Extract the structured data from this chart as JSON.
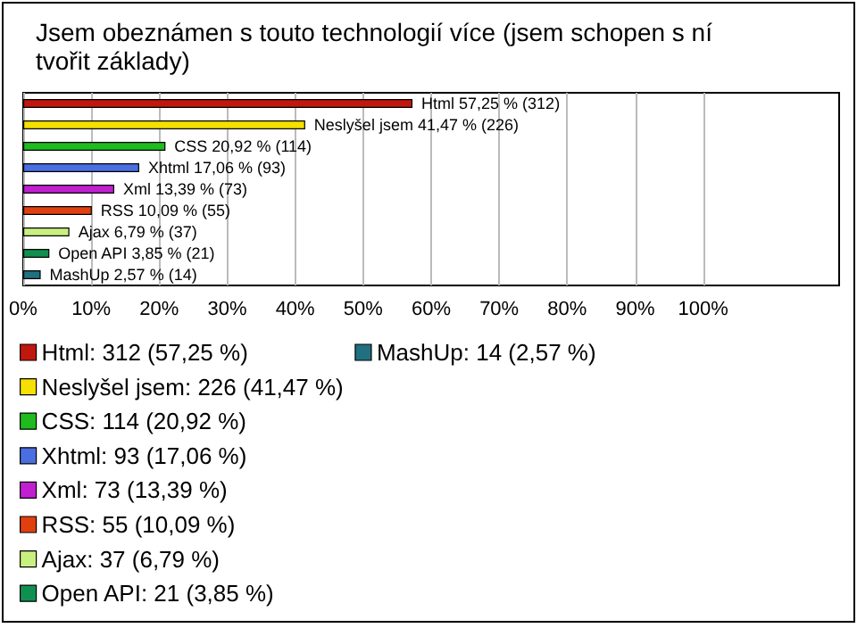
{
  "chart_data": {
    "type": "bar",
    "orientation": "horizontal",
    "stacked": true,
    "title": "Jsem obeznámen s touto technologií více (jsem schopen s ní tvořit základy)",
    "categories": [
      null,
      null,
      null,
      null,
      null,
      null,
      null,
      null,
      null
    ],
    "series": [
      {
        "name": "Html: 312 (57,25 %)",
        "color": "#c0170f",
        "values": [
          57.25,
          null,
          null,
          null,
          null,
          null,
          null,
          null,
          null
        ],
        "value_labels": [
          "Html 57,25 % (312)",
          null,
          null,
          null,
          null,
          null,
          null,
          null,
          null
        ]
      },
      {
        "name": "Neslyšel jsem: 226 (41,47 %)",
        "color": "#f5e000",
        "values": [
          null,
          41.47,
          null,
          null,
          null,
          null,
          null,
          null,
          null
        ],
        "value_labels": [
          null,
          "Neslyšel jsem 41,47 % (226)",
          null,
          null,
          null,
          null,
          null,
          null,
          null
        ]
      },
      {
        "name": "CSS: 114 (20,92 %)",
        "color": "#1fbb1f",
        "values": [
          null,
          null,
          20.92,
          null,
          null,
          null,
          null,
          null,
          null
        ],
        "value_labels": [
          null,
          null,
          "CSS 20,92 % (114)",
          null,
          null,
          null,
          null,
          null,
          null
        ]
      },
      {
        "name": "Xhtml: 93 (17,06 %)",
        "color": "#4a6fe0",
        "values": [
          null,
          null,
          null,
          17.06,
          null,
          null,
          null,
          null,
          null
        ],
        "value_labels": [
          null,
          null,
          null,
          "Xhtml 17,06 % (93)",
          null,
          null,
          null,
          null,
          null
        ]
      },
      {
        "name": "Xml: 73 (13,39 %)",
        "color": "#c020d0",
        "values": [
          null,
          null,
          null,
          null,
          13.39,
          null,
          null,
          null,
          null
        ],
        "value_labels": [
          null,
          null,
          null,
          null,
          "Xml 13,39 % (73)",
          null,
          null,
          null,
          null
        ]
      },
      {
        "name": "RSS: 55 (10,09 %)",
        "color": "#e04010",
        "values": [
          null,
          null,
          null,
          null,
          null,
          10.09,
          null,
          null,
          null
        ],
        "value_labels": [
          null,
          null,
          null,
          null,
          null,
          "RSS 10,09 % (55)",
          null,
          null,
          null
        ]
      },
      {
        "name": "Ajax: 37 (6,79 %)",
        "color": "#c8f080",
        "values": [
          null,
          null,
          null,
          null,
          null,
          null,
          6.79,
          null,
          null
        ],
        "value_labels": [
          null,
          null,
          null,
          null,
          null,
          null,
          "Ajax 6,79 % (37)",
          null,
          null
        ]
      },
      {
        "name": "Open API: 21 (3,85 %)",
        "color": "#109050",
        "values": [
          null,
          null,
          null,
          null,
          null,
          null,
          null,
          3.85,
          null
        ],
        "value_labels": [
          null,
          null,
          null,
          null,
          null,
          null,
          null,
          "Open API 3,85 % (21)",
          null
        ]
      },
      {
        "name": "MashUp: 14 (2,57 %)",
        "color": "#207080",
        "values": [
          null,
          null,
          null,
          null,
          null,
          null,
          null,
          null,
          2.57
        ],
        "value_labels": [
          null,
          null,
          null,
          null,
          null,
          null,
          null,
          null,
          "MashUp 2,57 % (14)"
        ]
      }
    ],
    "xlim": [
      0,
      120
    ],
    "xticks": [
      {
        "value": 0,
        "label": "0%"
      },
      {
        "value": 10,
        "label": "10%"
      },
      {
        "value": 20,
        "label": "20%"
      },
      {
        "value": 30,
        "label": "30%"
      },
      {
        "value": 40,
        "label": "40%"
      },
      {
        "value": 50,
        "label": "50%"
      },
      {
        "value": 60,
        "label": "60%"
      },
      {
        "value": 70,
        "label": "70%"
      },
      {
        "value": 80,
        "label": "80%"
      },
      {
        "value": 90,
        "label": "90%"
      },
      {
        "value": 100,
        "label": "100%"
      }
    ],
    "grid": "x",
    "legend": "bottom left"
  }
}
